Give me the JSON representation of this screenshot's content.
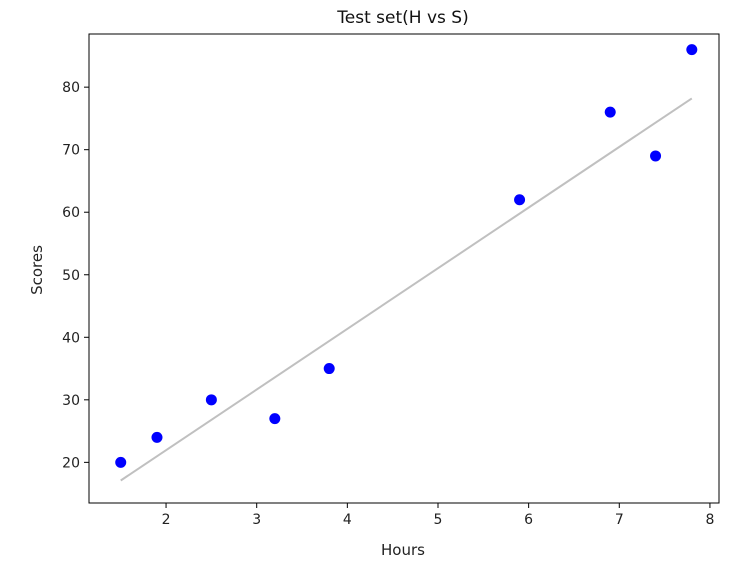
{
  "chart_data": {
    "type": "scatter",
    "title": "Test set(H vs S)",
    "xlabel": "Hours",
    "ylabel": "Scores",
    "xlim": [
      1.15,
      8.1
    ],
    "ylim": [
      13.5,
      88.5
    ],
    "xticks": [
      2,
      3,
      4,
      5,
      6,
      7,
      8
    ],
    "yticks": [
      20,
      30,
      40,
      50,
      60,
      70,
      80
    ],
    "grid": false,
    "points": {
      "color": "#0000ff",
      "x": [
        1.5,
        1.9,
        2.5,
        3.2,
        3.8,
        5.9,
        6.9,
        7.4,
        7.8
      ],
      "y": [
        20,
        24,
        30,
        27,
        35,
        62,
        76,
        69,
        86
      ]
    },
    "regression_line": {
      "color": "#c0c0c0",
      "x": [
        1.5,
        7.8
      ],
      "y": [
        17.1,
        78.2
      ]
    }
  }
}
